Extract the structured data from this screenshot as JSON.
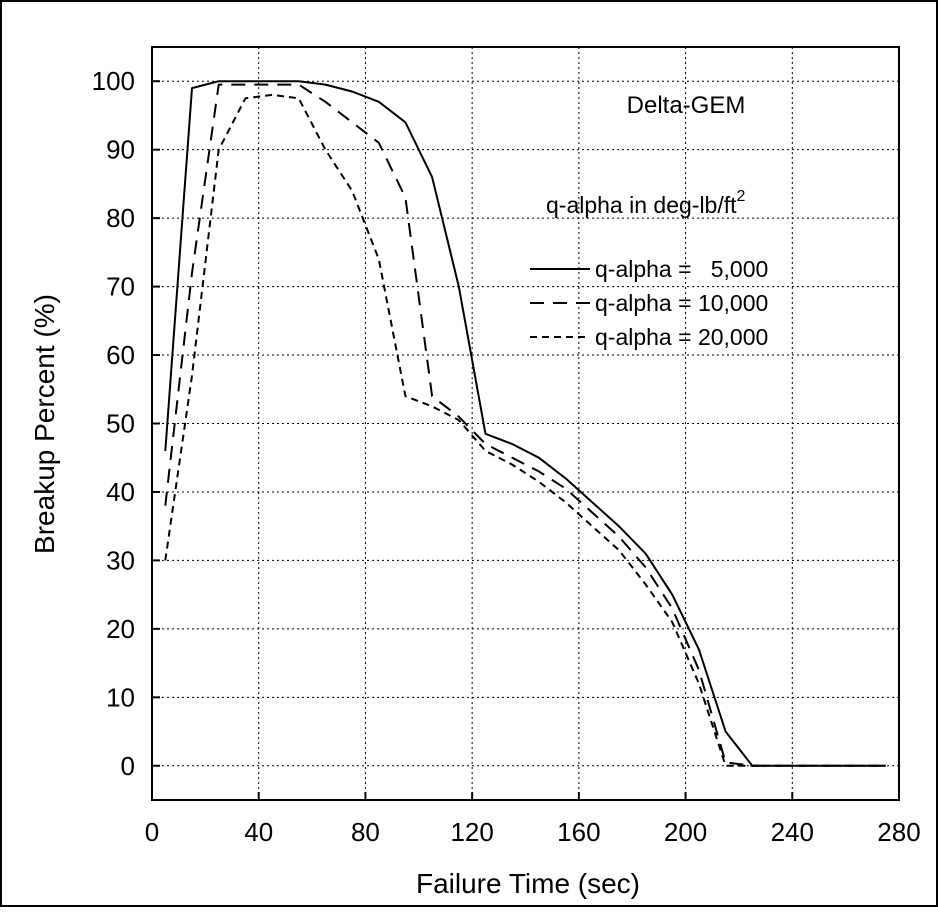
{
  "chart_data": {
    "type": "line",
    "title": "",
    "annotation": "Delta-GEM",
    "legend_title": "q-alpha in deg-lb/ft",
    "legend_title_superscript": "2",
    "xlabel": "Failure Time (sec)",
    "ylabel": "Breakup Percent (%)",
    "xlim": [
      0,
      280
    ],
    "ylim": [
      -5,
      105
    ],
    "xticks": [
      0,
      40,
      80,
      120,
      160,
      200,
      240,
      280
    ],
    "yticks": [
      0,
      10,
      20,
      30,
      40,
      50,
      60,
      70,
      80,
      90,
      100
    ],
    "grid": true,
    "legend_position": "right",
    "series": [
      {
        "name": "q-alpha =   5,000",
        "dash": "solid",
        "color": "#000000",
        "x": [
          5,
          15,
          25,
          35,
          45,
          55,
          65,
          75,
          85,
          95,
          105,
          115,
          125,
          135,
          145,
          155,
          165,
          175,
          185,
          195,
          205,
          215,
          225,
          235,
          245,
          255,
          265,
          275
        ],
        "y": [
          46,
          99,
          100,
          100,
          100,
          100,
          99.5,
          98.5,
          97,
          94,
          86,
          70,
          48.5,
          47,
          45,
          42,
          38.5,
          35,
          31,
          25,
          17,
          5,
          0,
          0,
          0,
          0,
          0,
          0
        ]
      },
      {
        "name": "q-alpha = 10,000",
        "dash": "long-dash",
        "color": "#000000",
        "x": [
          5,
          15,
          25,
          35,
          45,
          55,
          65,
          75,
          85,
          95,
          105,
          115,
          125,
          135,
          145,
          155,
          165,
          175,
          185,
          195,
          205,
          215,
          225,
          235,
          245,
          255,
          265,
          275
        ],
        "y": [
          38,
          72,
          99.5,
          99.5,
          99.5,
          99.5,
          97,
          94,
          91,
          83,
          54,
          51,
          47,
          45,
          43,
          40.5,
          37,
          33.5,
          29,
          23,
          14,
          0.5,
          0,
          0,
          0,
          0,
          0,
          0
        ]
      },
      {
        "name": "q-alpha = 20,000",
        "dash": "short-dash",
        "color": "#000000",
        "x": [
          5,
          15,
          25,
          35,
          45,
          55,
          65,
          75,
          85,
          95,
          105,
          115,
          125,
          135,
          145,
          155,
          165,
          175,
          185,
          195,
          205,
          215,
          225,
          235,
          245,
          255,
          265,
          275
        ],
        "y": [
          30,
          57,
          90,
          97.5,
          98,
          97.5,
          90,
          84,
          74,
          54,
          52.5,
          50.5,
          46,
          44,
          41.5,
          38.5,
          35,
          31.5,
          26.5,
          21,
          12,
          0,
          0,
          0,
          0,
          0,
          0,
          0
        ]
      }
    ]
  }
}
